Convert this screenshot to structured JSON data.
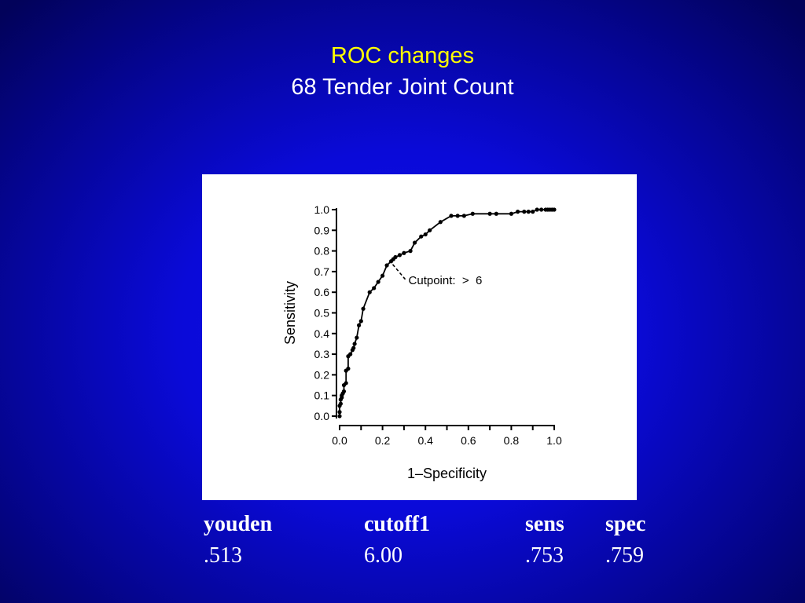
{
  "slide": {
    "title_line1": "ROC changes",
    "title_line2": "68 Tender Joint Count",
    "background_color": "#0a0ad8",
    "title_line1_color": "#ffff00",
    "title_line2_color": "#ffffff"
  },
  "chart_data": {
    "type": "line",
    "xlabel": "1–Specificity",
    "ylabel": "Sensitivity",
    "xlim": [
      0.0,
      1.0
    ],
    "ylim": [
      0.0,
      1.0
    ],
    "xticks": [
      "0.0",
      "0.2",
      "0.4",
      "0.6",
      "0.8",
      "1.0"
    ],
    "yticks": [
      "0.0",
      "0.1",
      "0.2",
      "0.3",
      "0.4",
      "0.5",
      "0.6",
      "0.7",
      "0.8",
      "0.9",
      "1.0"
    ],
    "grid": false,
    "series": [
      {
        "x": [
          0.0,
          0.0,
          0.0,
          0.005,
          0.005,
          0.01,
          0.01,
          0.015,
          0.02,
          0.02,
          0.03,
          0.03,
          0.04,
          0.04,
          0.05,
          0.06,
          0.065,
          0.07,
          0.08,
          0.09,
          0.1,
          0.11,
          0.14,
          0.16,
          0.18,
          0.2,
          0.22,
          0.24,
          0.25,
          0.26,
          0.28,
          0.3,
          0.33,
          0.35,
          0.38,
          0.4,
          0.42,
          0.47,
          0.52,
          0.55,
          0.58,
          0.62,
          0.7,
          0.73,
          0.8,
          0.83,
          0.86,
          0.88,
          0.9,
          0.92,
          0.94,
          0.96,
          0.97,
          0.98,
          0.99,
          1.0
        ],
        "y": [
          0.0,
          0.02,
          0.05,
          0.06,
          0.08,
          0.09,
          0.1,
          0.11,
          0.12,
          0.15,
          0.16,
          0.22,
          0.23,
          0.29,
          0.3,
          0.32,
          0.33,
          0.35,
          0.38,
          0.44,
          0.46,
          0.52,
          0.6,
          0.62,
          0.65,
          0.68,
          0.73,
          0.75,
          0.76,
          0.77,
          0.78,
          0.79,
          0.8,
          0.84,
          0.87,
          0.88,
          0.9,
          0.94,
          0.97,
          0.97,
          0.97,
          0.98,
          0.98,
          0.98,
          0.98,
          0.99,
          0.99,
          0.99,
          0.99,
          1.0,
          1.0,
          1.0,
          1.0,
          1.0,
          1.0,
          1.0
        ]
      }
    ],
    "annotation": {
      "text": "Cutpoint:  >  6",
      "x": 0.24,
      "y": 0.75
    },
    "line_color": "#000000"
  },
  "stats": {
    "headers": [
      "youden",
      "cutoff1",
      "sens",
      "spec"
    ],
    "values": [
      ".513",
      "6.00",
      ".753",
      ".759"
    ]
  }
}
